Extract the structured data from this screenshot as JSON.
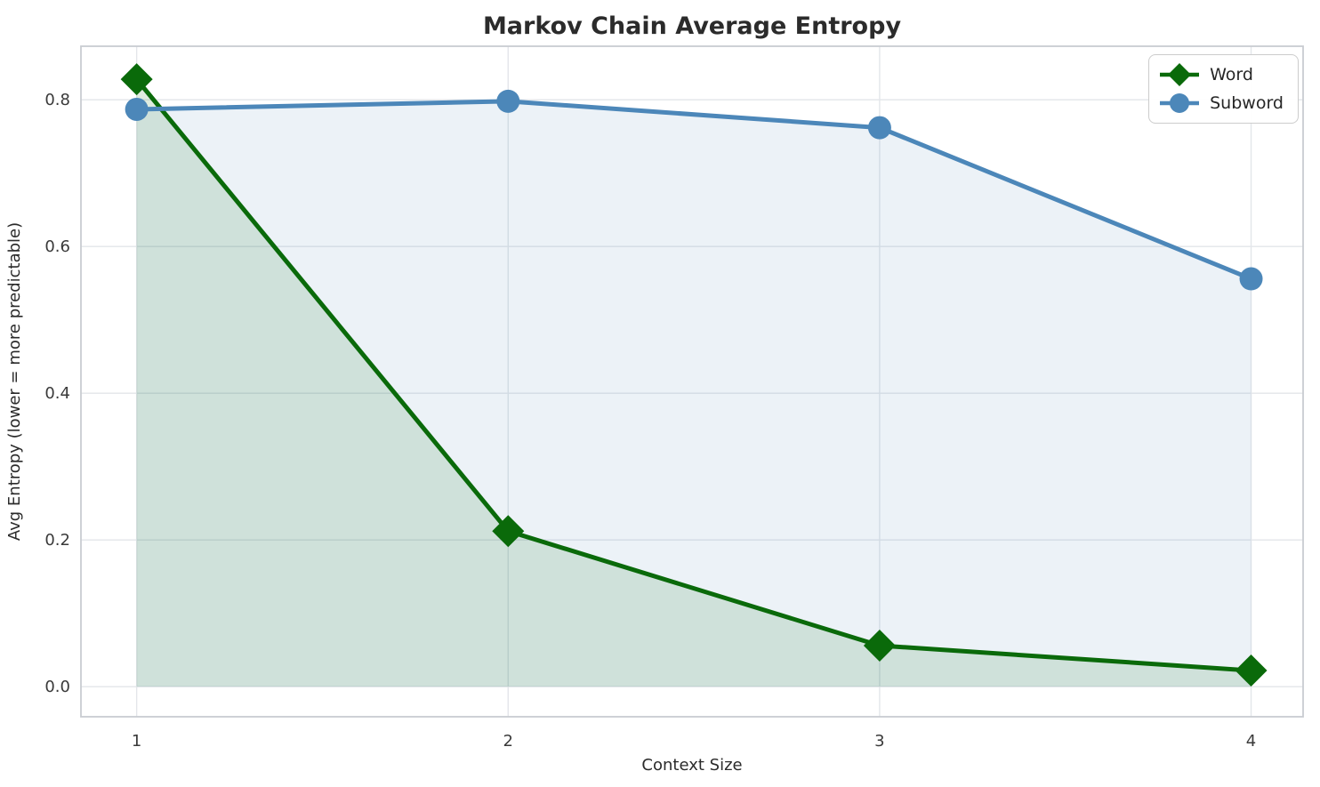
{
  "chart_data": {
    "type": "line",
    "title": "Markov Chain Average Entropy",
    "xlabel": "Context Size",
    "ylabel": "Avg Entropy (lower = more predictable)",
    "x": [
      1,
      2,
      3,
      4
    ],
    "series": [
      {
        "name": "Word",
        "values": [
          0.828,
          0.212,
          0.056,
          0.022
        ],
        "color": "#0a6a0a",
        "fill_color": "rgba(10,106,10,0.13)",
        "marker": "diamond"
      },
      {
        "name": "Subword",
        "values": [
          0.787,
          0.798,
          0.762,
          0.556
        ],
        "color": "#4c87b9",
        "fill_color": "rgba(70,130,180,0.10)",
        "marker": "circle"
      }
    ],
    "fill_baseline": 0,
    "xticks": [
      1,
      2,
      3,
      4
    ],
    "xtick_labels": [
      "1",
      "2",
      "3",
      "4"
    ],
    "yticks": [
      0.0,
      0.2,
      0.4,
      0.6,
      0.8
    ],
    "ytick_labels": [
      "0.0",
      "0.2",
      "0.4",
      "0.6",
      "0.8"
    ],
    "xlim": [
      0.85,
      4.14
    ],
    "ylim": [
      -0.041,
      0.873
    ],
    "grid": true,
    "legend_position": "upper right",
    "colors": {
      "grid": "#e3e6ea",
      "spine": "#c9ccd1",
      "text": "#2b2b2b",
      "tick_text": "#3a3a3a"
    }
  }
}
